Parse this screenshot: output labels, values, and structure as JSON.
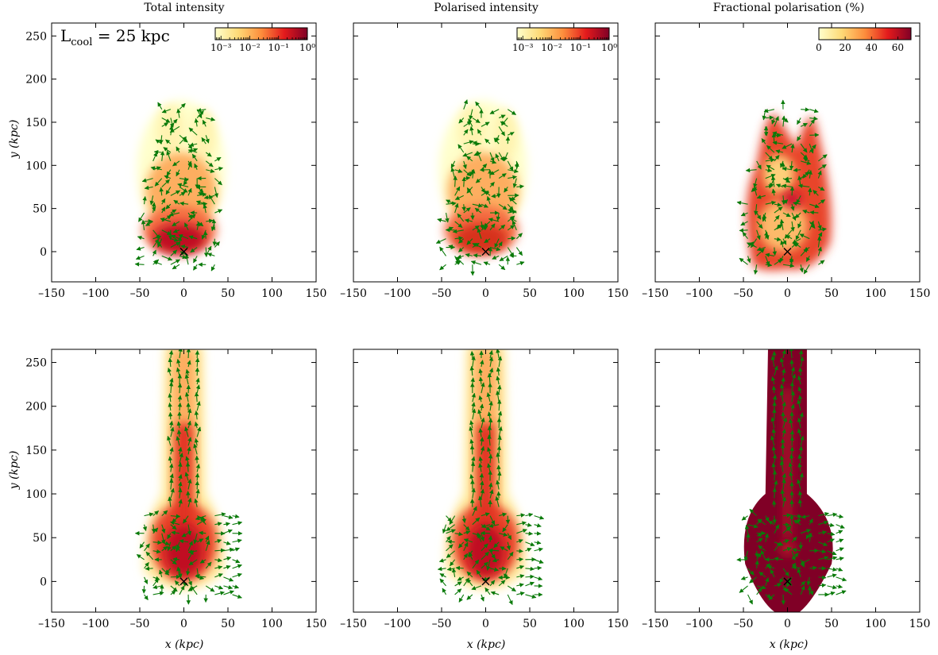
{
  "annotation": {
    "text": "L",
    "sub": "cool",
    "rest": " = 25 kpc"
  },
  "panel_titles": [
    "Total intensity",
    "Polarised intensity",
    "Fractional polarisation (%)"
  ],
  "axes": {
    "xlabel": "x (kpc)",
    "ylabel": "y (kpc)",
    "xlim": [
      -150,
      150
    ],
    "ylim": [
      -35,
      265
    ],
    "xticks": [
      -150,
      -100,
      -50,
      0,
      50,
      100,
      150
    ],
    "xtick_labels": [
      "–150",
      "–100",
      "–50",
      "0",
      "50",
      "100",
      "150"
    ],
    "yticks": [
      0,
      50,
      100,
      150,
      200,
      250
    ],
    "ytick_labels": [
      "0",
      "50",
      "100",
      "150",
      "200",
      "250"
    ]
  },
  "colorbars": [
    {
      "labels": [
        "10⁻³",
        "10⁻²",
        "10⁻¹",
        "10⁰"
      ],
      "scale": "log",
      "range": [
        0.000631,
        1
      ]
    },
    {
      "labels": [
        "10⁻³",
        "10⁻²",
        "10⁻¹",
        "10⁰"
      ],
      "scale": "log",
      "range": [
        0.000631,
        1
      ]
    },
    {
      "labels": [
        "0",
        "20",
        "40",
        "60"
      ],
      "scale": "linear",
      "range": [
        0,
        70
      ]
    }
  ],
  "colors": {
    "cmap": [
      "#ffffcc",
      "#fed976",
      "#fd8d3c",
      "#e31a1c",
      "#800026"
    ],
    "vectors": "#0a7a0a",
    "marker": "#000000"
  },
  "chart_data": [
    {
      "type": "heatmap",
      "title": "Total intensity",
      "row": 0,
      "col": 0,
      "xlabel": "",
      "ylabel": "y (kpc)",
      "xlim": [
        -150,
        150
      ],
      "ylim": [
        -35,
        265
      ],
      "marker": {
        "symbol": "x",
        "x": 0,
        "y": 0
      },
      "colormap": "YlOrRd",
      "colorbar": "log, 10^-3 to 10^0"
    },
    {
      "type": "heatmap",
      "title": "Polarised intensity",
      "row": 0,
      "col": 1,
      "xlabel": "",
      "ylabel": "",
      "xlim": [
        -150,
        150
      ],
      "ylim": [
        -35,
        265
      ],
      "marker": {
        "symbol": "x",
        "x": 0,
        "y": 0
      },
      "colormap": "YlOrRd",
      "colorbar": "log, 10^-3 to 10^0"
    },
    {
      "type": "heatmap",
      "title": "Fractional polarisation (%)",
      "row": 0,
      "col": 2,
      "xlabel": "",
      "ylabel": "",
      "xlim": [
        -150,
        150
      ],
      "ylim": [
        -35,
        265
      ],
      "marker": {
        "symbol": "x",
        "x": 0,
        "y": 0
      },
      "colormap": "YlOrRd",
      "colorbar": "linear, 0 to 70"
    },
    {
      "type": "heatmap",
      "title": "",
      "row": 1,
      "col": 0,
      "xlabel": "x (kpc)",
      "ylabel": "y (kpc)",
      "xlim": [
        -150,
        150
      ],
      "ylim": [
        -35,
        265
      ],
      "marker": {
        "symbol": "x",
        "x": 0,
        "y": 0
      },
      "colormap": "YlOrRd"
    },
    {
      "type": "heatmap",
      "title": "",
      "row": 1,
      "col": 1,
      "xlabel": "x (kpc)",
      "ylabel": "",
      "xlim": [
        -150,
        150
      ],
      "ylim": [
        -35,
        265
      ],
      "marker": {
        "symbol": "x",
        "x": 0,
        "y": 0
      },
      "colormap": "YlOrRd"
    },
    {
      "type": "heatmap",
      "title": "",
      "row": 1,
      "col": 2,
      "xlabel": "x (kpc)",
      "ylabel": "",
      "xlim": [
        -150,
        150
      ],
      "ylim": [
        -35,
        265
      ],
      "marker": {
        "symbol": "x",
        "x": 0,
        "y": 0
      },
      "colormap": "YlOrRd"
    }
  ]
}
